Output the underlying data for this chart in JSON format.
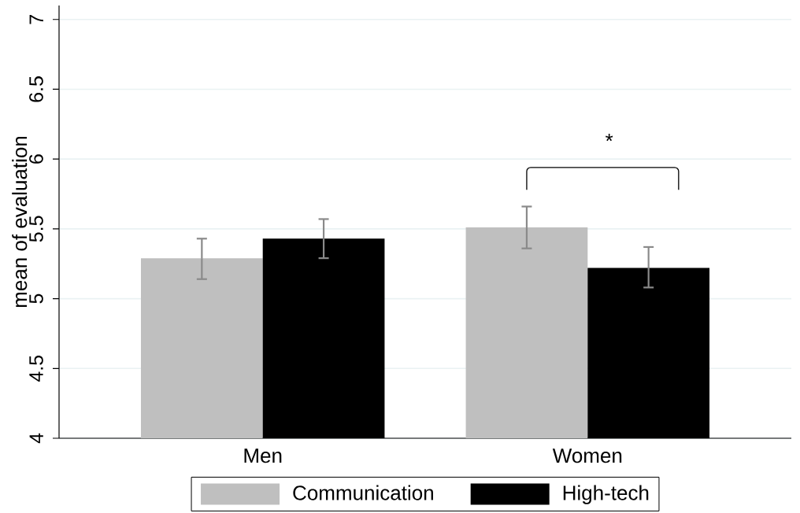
{
  "chart_data": {
    "type": "bar",
    "ylabel": "mean of evaluation",
    "categories": [
      "Men",
      "Women"
    ],
    "series": [
      {
        "name": "Communication",
        "color": "#bfbfbf",
        "values": [
          5.29,
          5.51
        ],
        "errors": [
          [
            5.14,
            5.43
          ],
          [
            5.36,
            5.66
          ]
        ]
      },
      {
        "name": "High-tech",
        "color": "#000000",
        "values": [
          5.43,
          5.22
        ],
        "errors": [
          [
            5.29,
            5.57
          ],
          [
            5.08,
            5.37
          ]
        ]
      }
    ],
    "ylim": [
      4,
      7.1
    ],
    "yticks": [
      4,
      4.5,
      5,
      5.5,
      6,
      6.5,
      7
    ],
    "grid": "y",
    "legend": "bottom",
    "annotations": [
      "*"
    ]
  }
}
